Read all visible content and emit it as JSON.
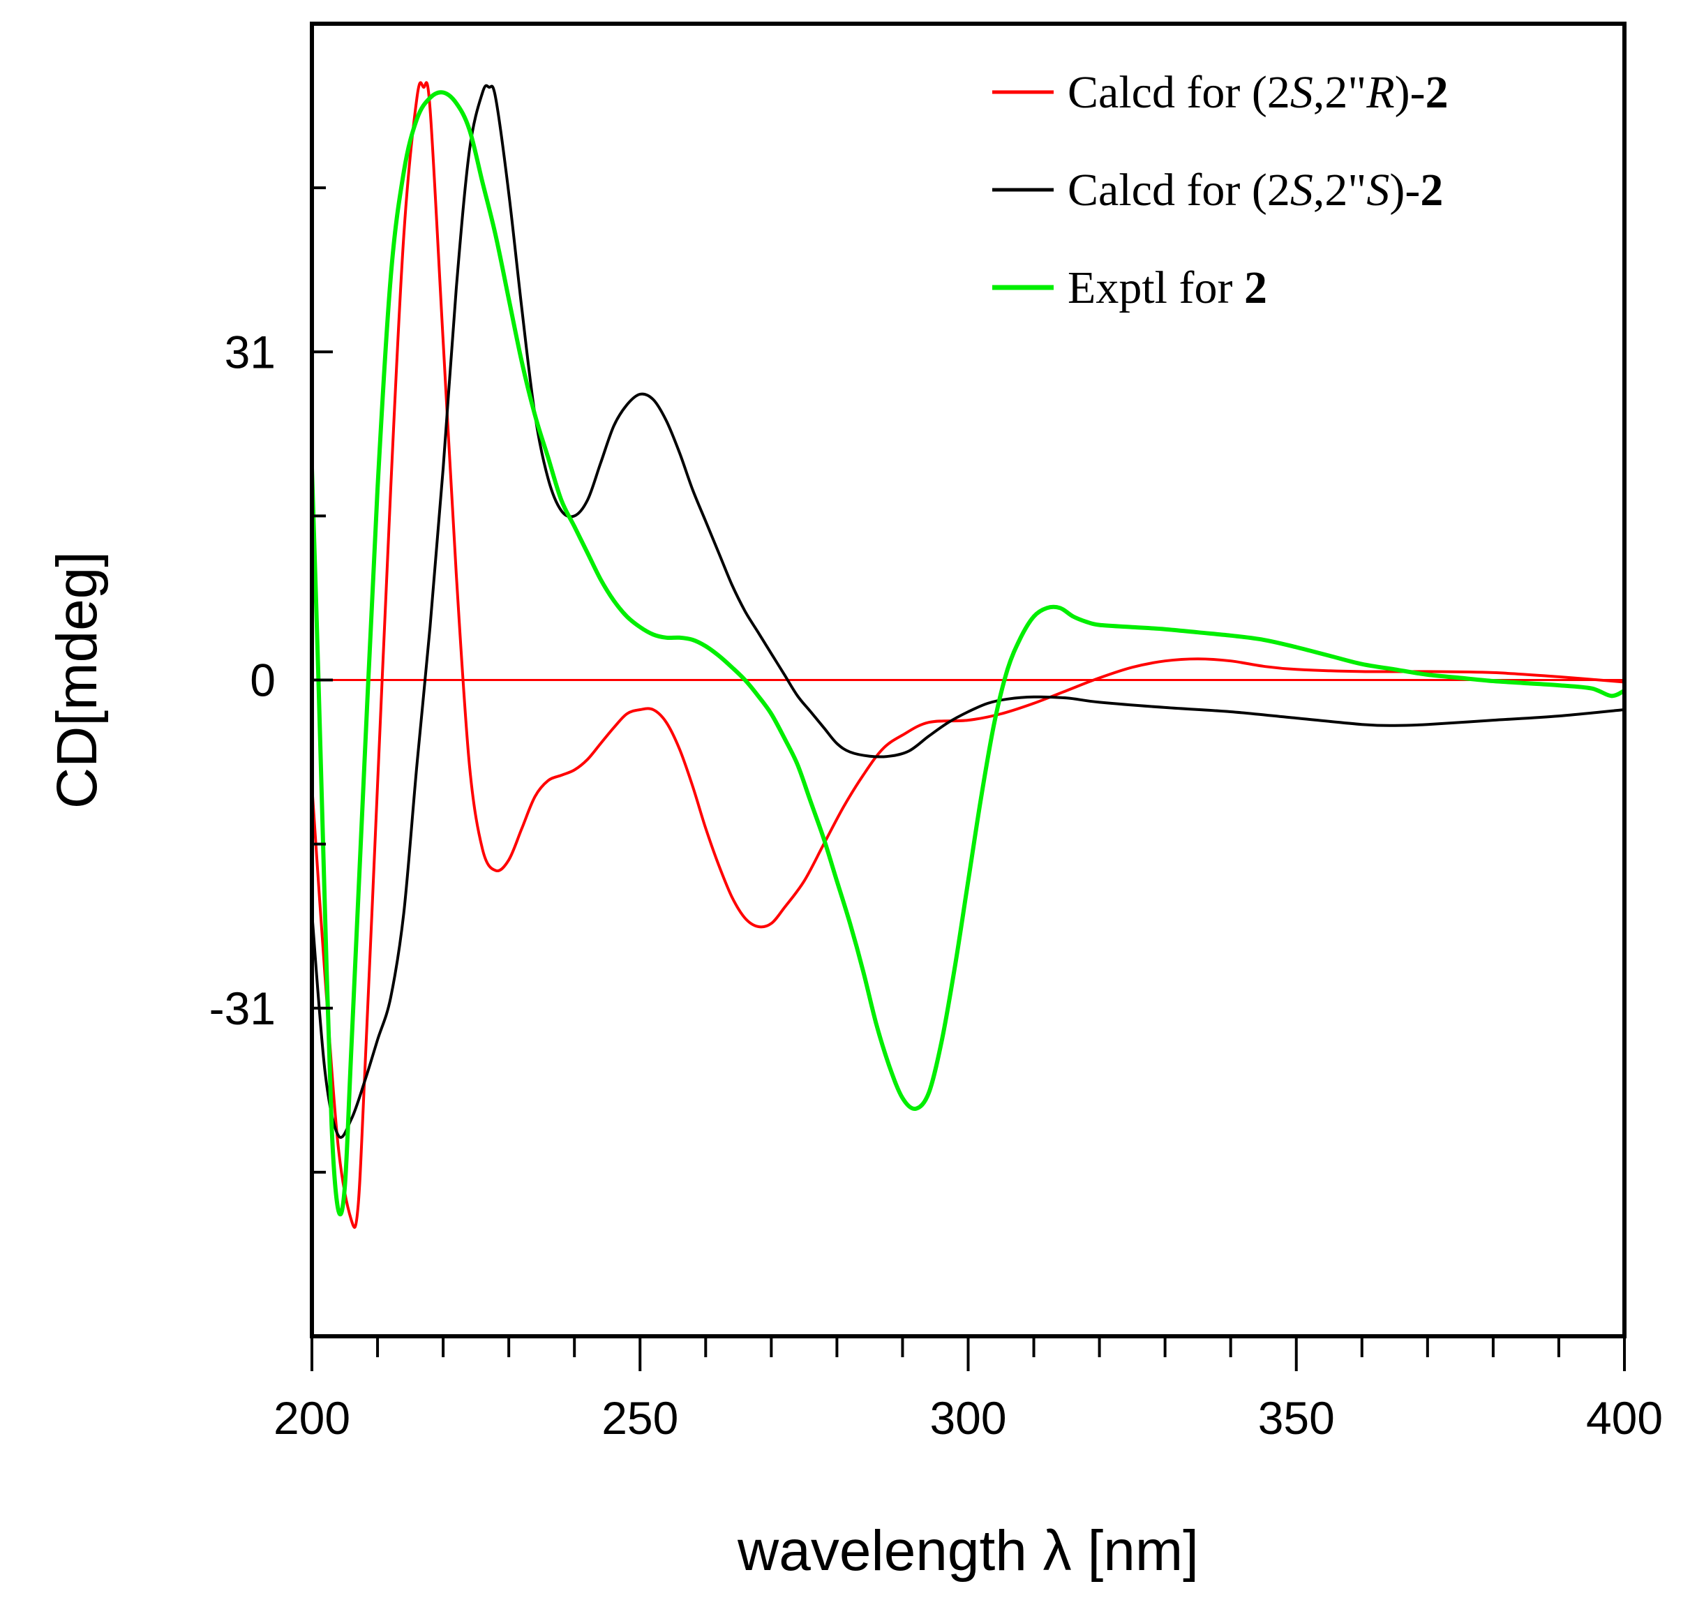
{
  "chart_data": {
    "type": "line",
    "xlabel": "wavelength λ [nm]",
    "ylabel": "CD[mdeg]",
    "xlim": [
      200,
      400
    ],
    "ylim": [
      -62,
      62
    ],
    "x_ticks": [
      200,
      250,
      300,
      350,
      400
    ],
    "x_tick_labels": [
      "200",
      "250",
      "300",
      "350",
      "400"
    ],
    "y_ticks": [
      31,
      0,
      -31
    ],
    "y_tick_labels": [
      "31",
      "0",
      "-31"
    ],
    "grid": false,
    "legend_position": "top-right",
    "series": [
      {
        "name": "Calcd for (2S,2\"R)-2",
        "legend_parts": [
          {
            "text": "Calcd for (2",
            "style": "normal"
          },
          {
            "text": "S",
            "style": "italic"
          },
          {
            "text": ",2\"",
            "style": "normal"
          },
          {
            "text": "R",
            "style": "italic"
          },
          {
            "text": ")-",
            "style": "normal"
          },
          {
            "text": "2",
            "style": "bold"
          }
        ],
        "color": "#ff0000",
        "points": [
          [
            200,
            -10
          ],
          [
            202,
            -28
          ],
          [
            204,
            -44
          ],
          [
            206,
            -51
          ],
          [
            207,
            -50
          ],
          [
            208,
            -38
          ],
          [
            210,
            -10
          ],
          [
            212,
            18
          ],
          [
            214,
            42
          ],
          [
            216,
            55
          ],
          [
            217,
            56
          ],
          [
            218,
            54
          ],
          [
            220,
            32
          ],
          [
            222,
            10
          ],
          [
            224,
            -8
          ],
          [
            226,
            -16
          ],
          [
            228,
            -18
          ],
          [
            230,
            -17
          ],
          [
            232,
            -14
          ],
          [
            234,
            -11
          ],
          [
            236,
            -9.5
          ],
          [
            238,
            -9
          ],
          [
            240,
            -8.5
          ],
          [
            242,
            -7.5
          ],
          [
            244,
            -6
          ],
          [
            246,
            -4.5
          ],
          [
            248,
            -3.2
          ],
          [
            250,
            -2.8
          ],
          [
            252,
            -2.8
          ],
          [
            254,
            -4
          ],
          [
            256,
            -6.5
          ],
          [
            258,
            -10
          ],
          [
            260,
            -14
          ],
          [
            262,
            -17.5
          ],
          [
            264,
            -20.5
          ],
          [
            266,
            -22.5
          ],
          [
            268,
            -23.3
          ],
          [
            270,
            -23
          ],
          [
            272,
            -21.5
          ],
          [
            275,
            -19
          ],
          [
            278,
            -15.5
          ],
          [
            281,
            -12
          ],
          [
            284,
            -9
          ],
          [
            287,
            -6.5
          ],
          [
            290,
            -5.2
          ],
          [
            294,
            -4
          ],
          [
            300,
            -3.8
          ],
          [
            305,
            -3.2
          ],
          [
            310,
            -2.2
          ],
          [
            315,
            -1
          ],
          [
            320,
            0.2
          ],
          [
            325,
            1.2
          ],
          [
            330,
            1.8
          ],
          [
            335,
            2
          ],
          [
            340,
            1.8
          ],
          [
            345,
            1.3
          ],
          [
            350,
            1
          ],
          [
            360,
            0.8
          ],
          [
            370,
            0.8
          ],
          [
            380,
            0.7
          ],
          [
            390,
            0.3
          ],
          [
            400,
            -0.2
          ]
        ]
      },
      {
        "name": "Calcd for (2S,2\"S)-2",
        "legend_parts": [
          {
            "text": "Calcd for (2",
            "style": "normal"
          },
          {
            "text": "S",
            "style": "italic"
          },
          {
            "text": ",2\"",
            "style": "normal"
          },
          {
            "text": "S",
            "style": "italic"
          },
          {
            "text": ")-",
            "style": "normal"
          },
          {
            "text": "2",
            "style": "bold"
          }
        ],
        "color": "#000000",
        "points": [
          [
            200,
            -22
          ],
          [
            202,
            -37
          ],
          [
            204,
            -43
          ],
          [
            206,
            -41.5
          ],
          [
            208,
            -38
          ],
          [
            210,
            -34
          ],
          [
            212,
            -30
          ],
          [
            214,
            -22
          ],
          [
            216,
            -8
          ],
          [
            218,
            5
          ],
          [
            220,
            20
          ],
          [
            222,
            37
          ],
          [
            224,
            50
          ],
          [
            226,
            55.5
          ],
          [
            227,
            56
          ],
          [
            228,
            55
          ],
          [
            230,
            46
          ],
          [
            232,
            35
          ],
          [
            234,
            25
          ],
          [
            236,
            19
          ],
          [
            238,
            16
          ],
          [
            240,
            15.5
          ],
          [
            242,
            17
          ],
          [
            244,
            20.5
          ],
          [
            246,
            24
          ],
          [
            248,
            26
          ],
          [
            250,
            27
          ],
          [
            252,
            26.5
          ],
          [
            254,
            24.5
          ],
          [
            256,
            21.5
          ],
          [
            258,
            18
          ],
          [
            260,
            15
          ],
          [
            262,
            12
          ],
          [
            264,
            9
          ],
          [
            266,
            6.5
          ],
          [
            268,
            4.5
          ],
          [
            270,
            2.5
          ],
          [
            272,
            0.5
          ],
          [
            274,
            -1.5
          ],
          [
            276,
            -3
          ],
          [
            278,
            -4.5
          ],
          [
            280,
            -6
          ],
          [
            282,
            -6.8
          ],
          [
            285,
            -7.2
          ],
          [
            288,
            -7.2
          ],
          [
            291,
            -6.7
          ],
          [
            294,
            -5.3
          ],
          [
            297,
            -4
          ],
          [
            300,
            -3
          ],
          [
            303,
            -2.2
          ],
          [
            306,
            -1.8
          ],
          [
            310,
            -1.6
          ],
          [
            315,
            -1.7
          ],
          [
            320,
            -2.1
          ],
          [
            330,
            -2.6
          ],
          [
            340,
            -3
          ],
          [
            350,
            -3.6
          ],
          [
            360,
            -4.2
          ],
          [
            365,
            -4.3
          ],
          [
            370,
            -4.2
          ],
          [
            380,
            -3.8
          ],
          [
            390,
            -3.4
          ],
          [
            400,
            -2.8
          ]
        ]
      },
      {
        "name": "Exptl for 2",
        "legend_parts": [
          {
            "text": "Exptl for ",
            "style": "normal"
          },
          {
            "text": "2",
            "style": "bold"
          }
        ],
        "color": "#00ee00",
        "points": [
          [
            200,
            20
          ],
          [
            201,
            0
          ],
          [
            202,
            -22
          ],
          [
            203,
            -42
          ],
          [
            204,
            -50
          ],
          [
            205,
            -48
          ],
          [
            206,
            -35
          ],
          [
            208,
            -8
          ],
          [
            210,
            18
          ],
          [
            212,
            38
          ],
          [
            214,
            48
          ],
          [
            216,
            53
          ],
          [
            218,
            55
          ],
          [
            220,
            55.5
          ],
          [
            222,
            54.5
          ],
          [
            224,
            52
          ],
          [
            226,
            47
          ],
          [
            228,
            42
          ],
          [
            230,
            36
          ],
          [
            232,
            30
          ],
          [
            234,
            25
          ],
          [
            236,
            21
          ],
          [
            238,
            17
          ],
          [
            240,
            14.5
          ],
          [
            242,
            12
          ],
          [
            244,
            9.5
          ],
          [
            246,
            7.5
          ],
          [
            248,
            6
          ],
          [
            250,
            5
          ],
          [
            252,
            4.3
          ],
          [
            254,
            4
          ],
          [
            256,
            4
          ],
          [
            258,
            3.8
          ],
          [
            260,
            3.2
          ],
          [
            262,
            2.3
          ],
          [
            264,
            1.2
          ],
          [
            266,
            0
          ],
          [
            268,
            -1.5
          ],
          [
            270,
            -3.2
          ],
          [
            272,
            -5.5
          ],
          [
            274,
            -8
          ],
          [
            276,
            -11.5
          ],
          [
            278,
            -15
          ],
          [
            280,
            -19
          ],
          [
            282,
            -23
          ],
          [
            284,
            -27.5
          ],
          [
            286,
            -32.5
          ],
          [
            288,
            -36.5
          ],
          [
            290,
            -39.5
          ],
          [
            292,
            -40.5
          ],
          [
            294,
            -39
          ],
          [
            296,
            -34
          ],
          [
            298,
            -27
          ],
          [
            300,
            -19
          ],
          [
            302,
            -11
          ],
          [
            304,
            -4
          ],
          [
            306,
            1
          ],
          [
            308,
            4
          ],
          [
            310,
            6
          ],
          [
            312,
            6.8
          ],
          [
            314,
            6.8
          ],
          [
            316,
            6
          ],
          [
            318,
            5.5
          ],
          [
            320,
            5.2
          ],
          [
            325,
            5
          ],
          [
            330,
            4.8
          ],
          [
            335,
            4.5
          ],
          [
            340,
            4.2
          ],
          [
            345,
            3.8
          ],
          [
            350,
            3.1
          ],
          [
            355,
            2.3
          ],
          [
            360,
            1.5
          ],
          [
            365,
            1
          ],
          [
            370,
            0.5
          ],
          [
            375,
            0.2
          ],
          [
            380,
            -0.1
          ],
          [
            385,
            -0.3
          ],
          [
            390,
            -0.5
          ],
          [
            395,
            -0.8
          ],
          [
            398,
            -1.5
          ],
          [
            400,
            -1
          ]
        ]
      },
      {
        "name": "",
        "color": "#ff0000",
        "role": "zero-line",
        "points": [
          [
            200,
            0
          ],
          [
            400,
            0
          ]
        ]
      }
    ]
  }
}
